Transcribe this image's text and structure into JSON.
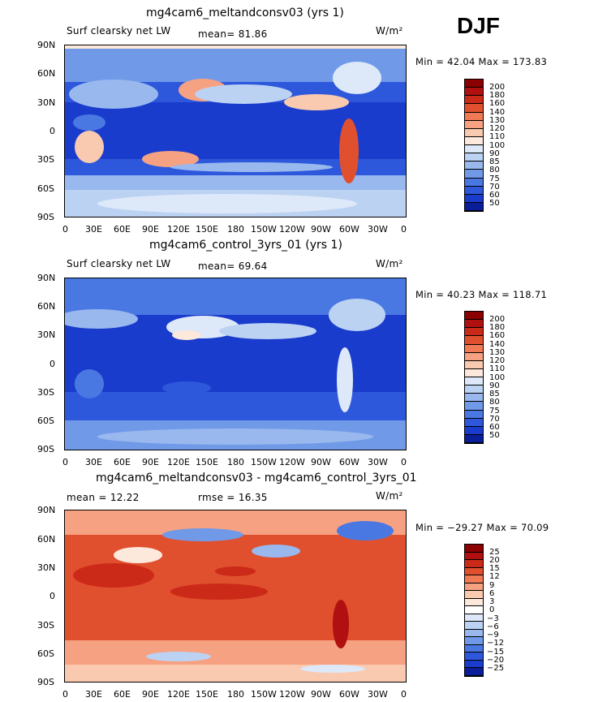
{
  "header": {
    "season": "DJF"
  },
  "palette_abs": [
    "#8b0000",
    "#b01010",
    "#cc2a18",
    "#e0502e",
    "#ef7a55",
    "#f6a282",
    "#f9c9b0",
    "#fde8dc",
    "#dde8f8",
    "#bcd2f3",
    "#98b8ee",
    "#7099e8",
    "#4a78e2",
    "#2e58dc",
    "#1a3ccc",
    "#0a1e9a"
  ],
  "palette_diff": [
    "#8b0000",
    "#b01010",
    "#cc2a18",
    "#e0502e",
    "#ef7a55",
    "#f6a282",
    "#f9c9b0",
    "#fde8dc",
    "#ffffff",
    "#dde8f8",
    "#bcd2f3",
    "#98b8ee",
    "#7099e8",
    "#4a78e2",
    "#2e58dc",
    "#1a3ccc",
    "#0a1e9a"
  ],
  "lat_labels": [
    "90N",
    "60N",
    "30N",
    "0",
    "30S",
    "60S",
    "90S"
  ],
  "lon_labels": [
    "0",
    "30E",
    "60E",
    "90E",
    "120E",
    "150E",
    "180",
    "150W",
    "120W",
    "90W",
    "60W",
    "30W",
    "0"
  ],
  "panels": [
    {
      "title": "mg4cam6_meltandconsv03 (yrs 1)",
      "left_label": "Surf clearsky net LW",
      "mid_label": "mean=  81.86",
      "units": "W/m²",
      "minmax": "Min =  42.04 Max = 173.83",
      "colorbar": [
        "200",
        "180",
        "160",
        "140",
        "130",
        "120",
        "110",
        "100",
        "90",
        "85",
        "80",
        "75",
        "70",
        "60",
        "50"
      ]
    },
    {
      "title": "mg4cam6_control_3yrs_01 (yrs 1)",
      "left_label": "Surf clearsky net LW",
      "mid_label": "mean=  69.64",
      "units": "W/m²",
      "minmax": "Min =  40.23 Max = 118.71",
      "colorbar": [
        "200",
        "180",
        "160",
        "140",
        "130",
        "120",
        "110",
        "100",
        "90",
        "85",
        "80",
        "75",
        "70",
        "60",
        "50"
      ]
    },
    {
      "title": "mg4cam6_meltandconsv03 - mg4cam6_control_3yrs_01",
      "left_label": "mean =  12.22",
      "mid_label": "rmse =  16.35",
      "units": "W/m²",
      "minmax": "Min = −29.27 Max =  70.09",
      "colorbar": [
        "25",
        "20",
        "15",
        "12",
        "9",
        "6",
        "3",
        "0",
        "−3",
        "−6",
        "−9",
        "−12",
        "−15",
        "−20",
        "−25"
      ]
    }
  ]
}
